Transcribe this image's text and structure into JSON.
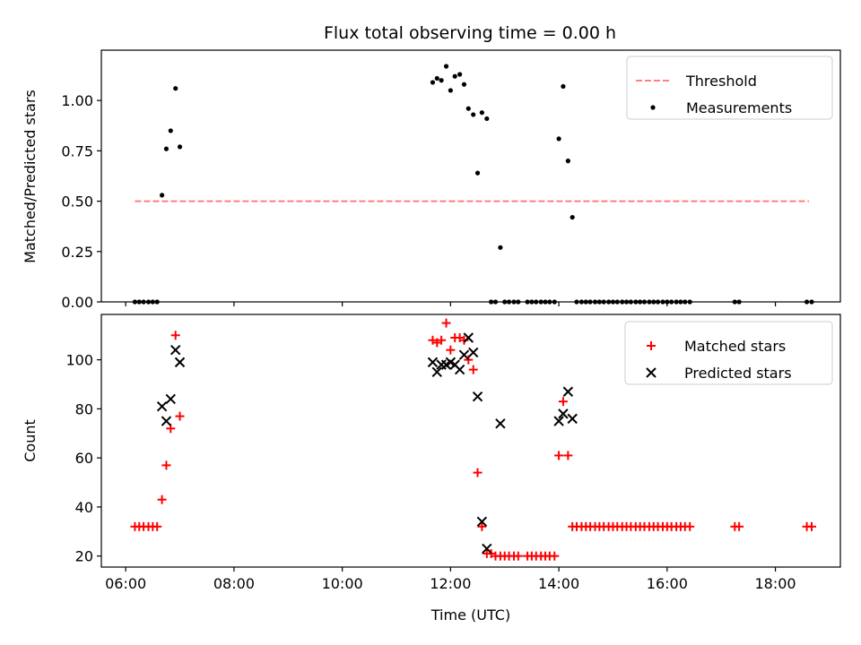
{
  "chart_data": [
    {
      "type": "scatter",
      "title": "Flux total observing time = 0.00 h",
      "xlabel": "",
      "ylabel": "Matched/Predicted stars",
      "xlim": [
        5.55,
        19.2
      ],
      "ylim": [
        0.0,
        1.25
      ],
      "x_is_time_hours": true,
      "x_ticks": [
        6,
        8,
        10,
        12,
        14,
        16,
        18
      ],
      "y_ticks": [
        0.0,
        0.25,
        0.5,
        0.75,
        1.0
      ],
      "y_tick_labels": [
        "0.00",
        "0.25",
        "0.50",
        "0.75",
        "1.00"
      ],
      "legend_position": "top-right",
      "series": [
        {
          "name": "Threshold",
          "kind": "line",
          "style": "dashed",
          "color": "#ff7f7f",
          "x": [
            6.17,
            18.62
          ],
          "y": [
            0.5,
            0.5
          ]
        },
        {
          "name": "Measurements",
          "kind": "scatter",
          "marker": "dot",
          "color": "#000000",
          "x": [
            6.17,
            6.25,
            6.33,
            6.42,
            6.5,
            6.58,
            6.67,
            6.75,
            6.83,
            6.92,
            7.0,
            11.67,
            11.75,
            11.83,
            11.92,
            12.0,
            12.08,
            12.17,
            12.25,
            12.33,
            12.42,
            12.5,
            12.58,
            12.67,
            12.75,
            12.83,
            12.92,
            13.0,
            13.08,
            13.17,
            13.25,
            13.42,
            13.5,
            13.58,
            13.67,
            13.75,
            13.83,
            13.92,
            14.0,
            14.08,
            14.17,
            14.25,
            14.33,
            14.42,
            14.5,
            14.58,
            14.67,
            14.75,
            14.83,
            14.92,
            15.0,
            15.08,
            15.17,
            15.25,
            15.33,
            15.42,
            15.5,
            15.58,
            15.67,
            15.75,
            15.83,
            15.92,
            16.0,
            16.08,
            16.17,
            16.25,
            16.33,
            16.42,
            17.25,
            17.33,
            18.58,
            18.67
          ],
          "y": [
            0.0,
            0.0,
            0.0,
            0.0,
            0.0,
            0.0,
            0.53,
            0.76,
            0.85,
            1.06,
            0.77,
            1.09,
            1.11,
            1.1,
            1.17,
            1.05,
            1.12,
            1.13,
            1.08,
            0.96,
            0.93,
            0.64,
            0.94,
            0.91,
            0.0,
            0.0,
            0.27,
            0.0,
            0.0,
            0.0,
            0.0,
            0.0,
            0.0,
            0.0,
            0.0,
            0.0,
            0.0,
            0.0,
            0.81,
            1.07,
            0.7,
            0.42,
            0.0,
            0.0,
            0.0,
            0.0,
            0.0,
            0.0,
            0.0,
            0.0,
            0.0,
            0.0,
            0.0,
            0.0,
            0.0,
            0.0,
            0.0,
            0.0,
            0.0,
            0.0,
            0.0,
            0.0,
            0.0,
            0.0,
            0.0,
            0.0,
            0.0,
            0.0,
            0.0,
            0.0,
            0.0,
            0.0
          ]
        }
      ]
    },
    {
      "type": "scatter",
      "title": "",
      "xlabel": "Time (UTC)",
      "ylabel": "Count",
      "xlim": [
        5.55,
        19.2
      ],
      "ylim": [
        15.5,
        118.5
      ],
      "x_is_time_hours": true,
      "x_ticks": [
        6,
        8,
        10,
        12,
        14,
        16,
        18
      ],
      "x_tick_labels": [
        "06:00",
        "08:00",
        "10:00",
        "12:00",
        "14:00",
        "16:00",
        "18:00"
      ],
      "y_ticks": [
        20,
        40,
        60,
        80,
        100
      ],
      "y_tick_labels": [
        "20",
        "40",
        "60",
        "80",
        "100"
      ],
      "legend_position": "top-right",
      "series": [
        {
          "name": "Matched stars",
          "kind": "scatter",
          "marker": "plus",
          "color": "#ff0000",
          "x": [
            6.17,
            6.25,
            6.33,
            6.42,
            6.5,
            6.58,
            6.67,
            6.75,
            6.83,
            6.92,
            7.0,
            11.67,
            11.75,
            11.83,
            11.92,
            12.0,
            12.08,
            12.17,
            12.25,
            12.33,
            12.42,
            12.5,
            12.58,
            12.67,
            12.75,
            12.83,
            12.92,
            13.0,
            13.08,
            13.17,
            13.25,
            13.42,
            13.5,
            13.58,
            13.67,
            13.75,
            13.83,
            13.92,
            14.0,
            14.08,
            14.17,
            14.25,
            14.33,
            14.42,
            14.5,
            14.58,
            14.67,
            14.75,
            14.83,
            14.92,
            15.0,
            15.08,
            15.17,
            15.25,
            15.33,
            15.42,
            15.5,
            15.58,
            15.67,
            15.75,
            15.83,
            15.92,
            16.0,
            16.08,
            16.17,
            16.25,
            16.33,
            16.42,
            17.25,
            17.33,
            18.58,
            18.67
          ],
          "y": [
            32,
            32,
            32,
            32,
            32,
            32,
            43,
            57,
            72,
            110,
            77,
            108,
            107,
            108,
            115,
            104,
            109,
            109,
            108,
            100,
            96,
            54,
            32,
            21,
            21,
            20,
            20,
            20,
            20,
            20,
            20,
            20,
            20,
            20,
            20,
            20,
            20,
            20,
            61,
            83,
            61,
            32,
            32,
            32,
            32,
            32,
            32,
            32,
            32,
            32,
            32,
            32,
            32,
            32,
            32,
            32,
            32,
            32,
            32,
            32,
            32,
            32,
            32,
            32,
            32,
            32,
            32,
            32,
            32,
            32,
            32,
            32
          ]
        },
        {
          "name": "Predicted stars",
          "kind": "scatter",
          "marker": "x",
          "color": "#000000",
          "x": [
            6.67,
            6.75,
            6.83,
            6.92,
            7.0,
            11.67,
            11.75,
            11.83,
            11.92,
            12.0,
            12.08,
            12.17,
            12.25,
            12.33,
            12.42,
            12.5,
            12.58,
            12.67,
            12.92,
            14.0,
            14.08,
            14.17,
            14.25
          ],
          "y": [
            81,
            75,
            84,
            104,
            99,
            99,
            95,
            98,
            98,
            99,
            98,
            96,
            102,
            109,
            103,
            85,
            34,
            23,
            74,
            75,
            78,
            87,
            76
          ]
        }
      ]
    }
  ]
}
